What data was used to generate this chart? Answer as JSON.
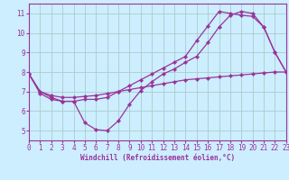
{
  "bg_color": "#cceeff",
  "line_color": "#993399",
  "grid_color": "#aacccc",
  "xlabel": "Windchill (Refroidissement éolien,°C)",
  "xlim": [
    0,
    23
  ],
  "ylim": [
    4.5,
    11.5
  ],
  "yticks": [
    5,
    6,
    7,
    8,
    9,
    10,
    11
  ],
  "xticks": [
    0,
    1,
    2,
    3,
    4,
    5,
    6,
    7,
    8,
    9,
    10,
    11,
    12,
    13,
    14,
    15,
    16,
    17,
    18,
    19,
    20,
    21,
    22,
    23
  ],
  "curve1_x": [
    0,
    1,
    2,
    3,
    4,
    5,
    6,
    7,
    8,
    9,
    10,
    11,
    12,
    13,
    14,
    15,
    16,
    17,
    18,
    19,
    20,
    21,
    22,
    23
  ],
  "curve1_y": [
    7.9,
    6.9,
    6.6,
    6.5,
    6.5,
    5.4,
    5.05,
    5.0,
    5.5,
    6.35,
    7.05,
    7.5,
    7.9,
    8.15,
    8.5,
    8.8,
    9.5,
    10.3,
    10.9,
    11.1,
    11.0,
    10.3,
    9.0,
    8.0
  ],
  "curve2_x": [
    0,
    1,
    2,
    3,
    4,
    5,
    6,
    7,
    8,
    9,
    10,
    11,
    12,
    13,
    14,
    15,
    16,
    17,
    18,
    19,
    20,
    21,
    22,
    23
  ],
  "curve2_y": [
    7.9,
    7.0,
    6.7,
    6.5,
    6.5,
    6.6,
    6.6,
    6.7,
    7.0,
    7.3,
    7.6,
    7.9,
    8.2,
    8.5,
    8.8,
    9.6,
    10.35,
    11.1,
    11.0,
    10.9,
    10.85,
    10.3,
    9.0,
    8.0
  ],
  "curve3_x": [
    0,
    1,
    2,
    3,
    4,
    5,
    6,
    7,
    8,
    9,
    10,
    11,
    12,
    13,
    14,
    15,
    16,
    17,
    18,
    19,
    20,
    21,
    22,
    23
  ],
  "curve3_y": [
    7.9,
    7.0,
    6.8,
    6.7,
    6.7,
    6.75,
    6.8,
    6.9,
    7.0,
    7.1,
    7.2,
    7.3,
    7.4,
    7.5,
    7.6,
    7.65,
    7.7,
    7.75,
    7.8,
    7.85,
    7.9,
    7.95,
    8.0,
    8.0
  ]
}
